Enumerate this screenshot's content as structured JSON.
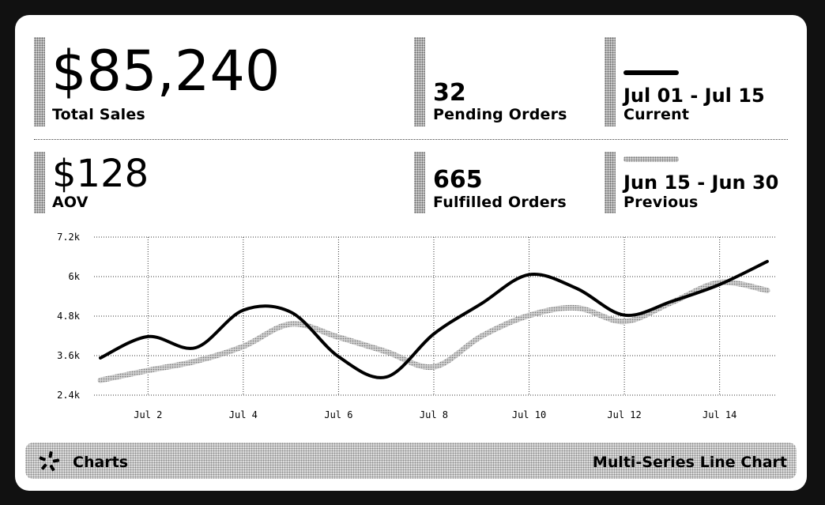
{
  "stats": {
    "total_sales": {
      "value": "$85,240",
      "label": "Total Sales"
    },
    "pending": {
      "value": "32",
      "label": "Pending Orders"
    },
    "aov": {
      "value": "$128",
      "label": "AOV"
    },
    "fulfilled": {
      "value": "665",
      "label": "Fulfilled Orders"
    }
  },
  "legend": {
    "current": {
      "range": "Jul 01 - Jul 15",
      "label": "Current"
    },
    "previous": {
      "range": "Jun 15 - Jun 30",
      "label": "Previous"
    }
  },
  "footer": {
    "left": "Charts",
    "right": "Multi-Series Line Chart",
    "logo_icon": "sparkle-logo-icon"
  },
  "chart_data": {
    "type": "line",
    "x": [
      1,
      2,
      3,
      4,
      5,
      6,
      7,
      8,
      9,
      10,
      11,
      12,
      13,
      14,
      15
    ],
    "xticks": [
      2,
      4,
      6,
      8,
      10,
      12,
      14
    ],
    "xtick_labels": [
      "Jul 2",
      "Jul 4",
      "Jul 6",
      "Jul 8",
      "Jul 10",
      "Jul 12",
      "Jul 14"
    ],
    "xlim": [
      1,
      15.2
    ],
    "ylim": [
      2400,
      7200
    ],
    "yticks": [
      2400,
      3600,
      4800,
      6000,
      7200
    ],
    "ytick_labels": [
      "2.4k",
      "3.6k",
      "4.8k",
      "6k",
      "7.2k"
    ],
    "grid": true,
    "series": [
      {
        "name": "Current",
        "color": "#000000",
        "values": [
          3530,
          4180,
          3840,
          4980,
          4920,
          3570,
          2950,
          4260,
          5180,
          6060,
          5640,
          4830,
          5250,
          5760,
          6460
        ]
      },
      {
        "name": "Previous",
        "color": "#9a9a9a",
        "values": [
          2850,
          3150,
          3430,
          3880,
          4560,
          4160,
          3720,
          3260,
          4190,
          4820,
          5050,
          4640,
          5220,
          5820,
          5580
        ]
      }
    ]
  }
}
